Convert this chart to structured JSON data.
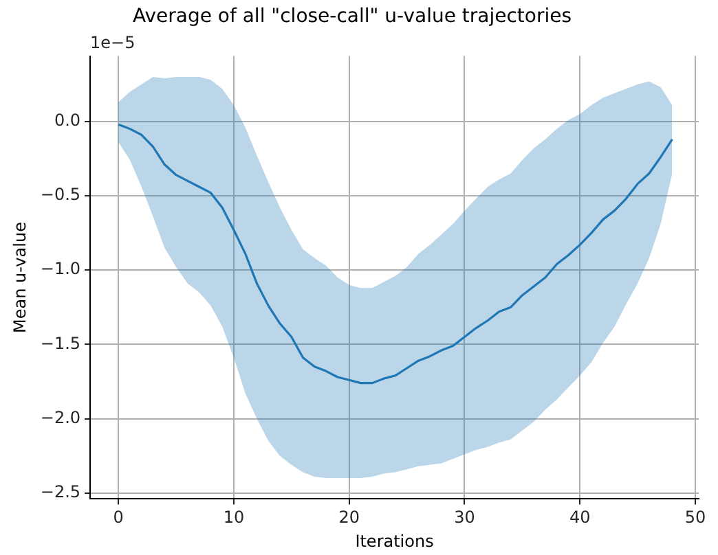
{
  "chart_data": {
    "type": "line",
    "title": "Average of all \"close-call\" u-value trajectories",
    "xlabel": "Iterations",
    "ylabel": "Mean u-value",
    "annotations": [
      "1e−5"
    ],
    "x": [
      0,
      1,
      2,
      3,
      4,
      5,
      6,
      7,
      8,
      9,
      10,
      11,
      12,
      13,
      14,
      15,
      16,
      17,
      18,
      19,
      20,
      21,
      22,
      23,
      24,
      25,
      26,
      27,
      28,
      29,
      30,
      31,
      32,
      33,
      34,
      35,
      36,
      37,
      38,
      39,
      40,
      41,
      42,
      43,
      44,
      45,
      46,
      47,
      48
    ],
    "series": [
      {
        "color": "#1f77b4",
        "values": [
          -0.02,
          -0.05,
          -0.09,
          -0.17,
          -0.29,
          -0.36,
          -0.4,
          -0.44,
          -0.48,
          -0.58,
          -0.73,
          -0.89,
          -1.09,
          -1.24,
          -1.36,
          -1.45,
          -1.59,
          -1.65,
          -1.68,
          -1.72,
          -1.74,
          -1.76,
          -1.76,
          -1.73,
          -1.71,
          -1.66,
          -1.61,
          -1.58,
          -1.54,
          -1.51,
          -1.45,
          -1.39,
          -1.34,
          -1.28,
          -1.25,
          -1.17,
          -1.11,
          -1.05,
          -0.96,
          -0.9,
          -0.83,
          -0.75,
          -0.66,
          -0.6,
          -0.52,
          -0.42,
          -0.35,
          -0.24,
          -0.12
        ],
        "lower": [
          -0.14,
          -0.26,
          -0.44,
          -0.64,
          -0.85,
          -0.98,
          -1.09,
          -1.15,
          -1.24,
          -1.38,
          -1.59,
          -1.83,
          -2.0,
          -2.15,
          -2.25,
          -2.31,
          -2.36,
          -2.39,
          -2.4,
          -2.4,
          -2.4,
          -2.4,
          -2.39,
          -2.37,
          -2.36,
          -2.34,
          -2.32,
          -2.31,
          -2.3,
          -2.27,
          -2.24,
          -2.21,
          -2.19,
          -2.16,
          -2.14,
          -2.08,
          -2.02,
          -1.94,
          -1.87,
          -1.79,
          -1.71,
          -1.62,
          -1.49,
          -1.38,
          -1.23,
          -1.09,
          -0.92,
          -0.69,
          -0.35
        ],
        "upper": [
          0.13,
          0.2,
          0.25,
          0.3,
          0.29,
          0.3,
          0.3,
          0.3,
          0.28,
          0.22,
          0.11,
          -0.04,
          -0.23,
          -0.41,
          -0.58,
          -0.73,
          -0.86,
          -0.92,
          -0.97,
          -1.05,
          -1.1,
          -1.12,
          -1.12,
          -1.08,
          -1.04,
          -0.98,
          -0.89,
          -0.83,
          -0.76,
          -0.69,
          -0.6,
          -0.52,
          -0.44,
          -0.39,
          -0.35,
          -0.26,
          -0.18,
          -0.12,
          -0.05,
          0.01,
          0.05,
          0.11,
          0.16,
          0.19,
          0.22,
          0.25,
          0.27,
          0.23,
          0.11
        ]
      }
    ],
    "xlim": [
      -2.45,
      50.3
    ],
    "xticks": [
      0,
      10,
      20,
      30,
      40,
      50
    ],
    "ylim": [
      -2.54,
      0.44
    ],
    "yticks": [
      {
        "value": -2.5,
        "label": "−2.5"
      },
      {
        "value": -2.0,
        "label": "−2.0"
      },
      {
        "value": -1.5,
        "label": "−1.5"
      },
      {
        "value": -1.0,
        "label": "−1.0"
      },
      {
        "value": -0.5,
        "label": "−0.5"
      },
      {
        "value": 0,
        "label": "0.0"
      }
    ],
    "grid": true,
    "legend": false,
    "marker": "none",
    "line_style": "solid"
  }
}
